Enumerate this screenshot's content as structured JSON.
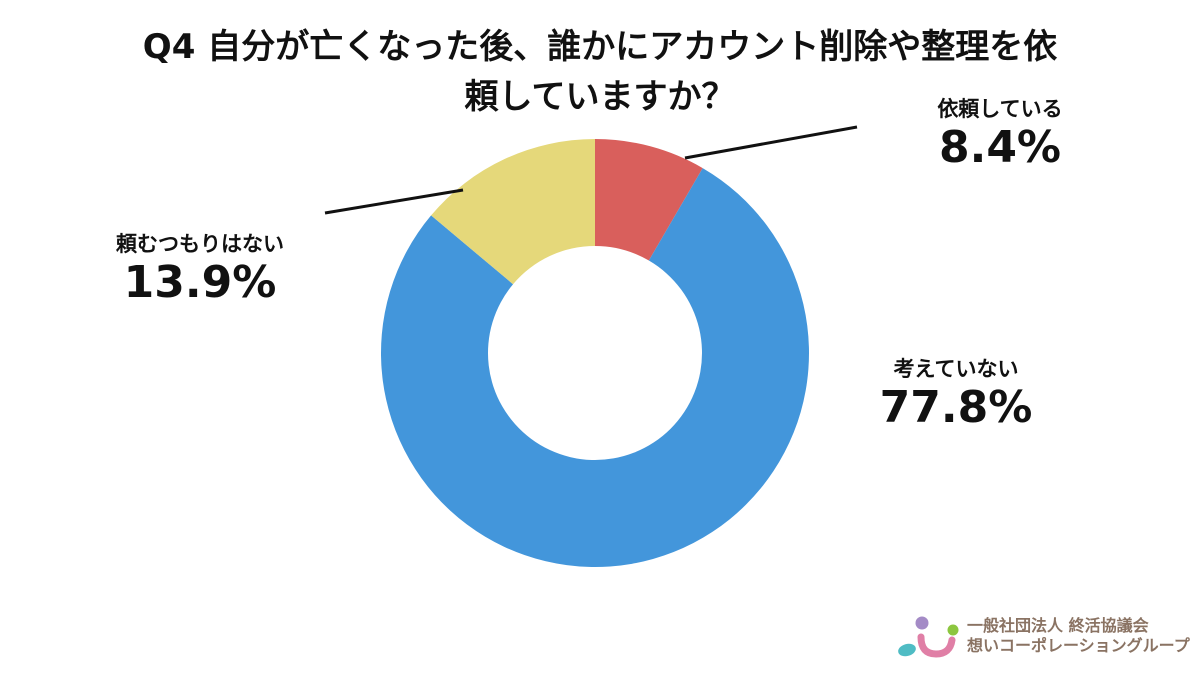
{
  "title": {
    "line1": "Q4 自分が亡くなった後、誰かにアカウント削除や整理を依",
    "line2": "頼していますか？"
  },
  "colors": {
    "requested": "#d95f5c",
    "not_considered": "#4396db",
    "no_intent": "#e5d87a",
    "leader_line": "#111111",
    "logo_text": "#8a7363"
  },
  "labels": {
    "requested": {
      "name": "依頼している",
      "pct": "8.4%"
    },
    "not_considered": {
      "name": "考えていない",
      "pct": "77.8%"
    },
    "no_intent": {
      "name": "頼むつもりはない",
      "pct": "13.9%"
    }
  },
  "logo": {
    "line1": "一般社団法人 終活協議会",
    "line2": "想いコーポレーショングループ"
  },
  "chart_data": {
    "type": "pie",
    "subtype": "donut",
    "title": "Q4 自分が亡くなった後、誰かにアカウント削除や整理を依頼していますか？",
    "categories": [
      "依頼している",
      "考えていない",
      "頼むつもりはない"
    ],
    "values": [
      8.4,
      77.8,
      13.9
    ],
    "unit": "%",
    "colors": [
      "#d95f5c",
      "#4396db",
      "#e5d87a"
    ],
    "start_angle": "12 o'clock, clockwise",
    "legend": "none (direct labels with leader lines)",
    "center": [
      595,
      353
    ],
    "outer_radius": 214,
    "inner_radius": 107
  }
}
